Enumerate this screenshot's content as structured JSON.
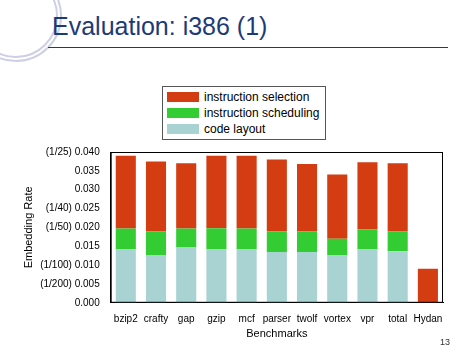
{
  "slide": {
    "title": "Evaluation: i386 (1)",
    "page": "13"
  },
  "chart_data": {
    "type": "bar",
    "stacked": true,
    "x_label": "Benchmarks",
    "y_label": "Embedding Rate",
    "categories": [
      "bzip2",
      "crafty",
      "gap",
      "gzip",
      "mcf",
      "parser",
      "twolf",
      "vortex",
      "vpr",
      "total",
      "Hydan"
    ],
    "series": [
      {
        "name": "code layout",
        "color": "#a9d2d2",
        "values": [
          0.0143,
          0.0127,
          0.0147,
          0.0143,
          0.0143,
          0.0135,
          0.0135,
          0.0127,
          0.0143,
          0.0137,
          0
        ]
      },
      {
        "name": "instruction scheduling",
        "color": "#33cc33",
        "values": [
          0.0054,
          0.0063,
          0.005,
          0.0055,
          0.0054,
          0.0055,
          0.0055,
          0.0043,
          0.0052,
          0.0053,
          0
        ]
      },
      {
        "name": "instruction selection",
        "color": "#d43d12",
        "values": [
          0.0193,
          0.0185,
          0.0173,
          0.0192,
          0.0193,
          0.019,
          0.0178,
          0.017,
          0.0178,
          0.018,
          0.009
        ]
      }
    ],
    "legend_order": [
      "instruction selection",
      "instruction scheduling",
      "code layout"
    ],
    "ylim": [
      0,
      0.04
    ],
    "yticks": [
      {
        "value": 0,
        "label": "0.000"
      },
      {
        "value": 0.005,
        "label": "(1/200) 0.005"
      },
      {
        "value": 0.01,
        "label": "(1/100) 0.010"
      },
      {
        "value": 0.015,
        "label": "0.015"
      },
      {
        "value": 0.02,
        "label": "(1/50) 0.020"
      },
      {
        "value": 0.025,
        "label": "(1/40) 0.025"
      },
      {
        "value": 0.03,
        "label": "0.030"
      },
      {
        "value": 0.035,
        "label": "0.035"
      },
      {
        "value": 0.04,
        "label": "(1/25) 0.040"
      }
    ],
    "grid": false,
    "legend": "top"
  }
}
